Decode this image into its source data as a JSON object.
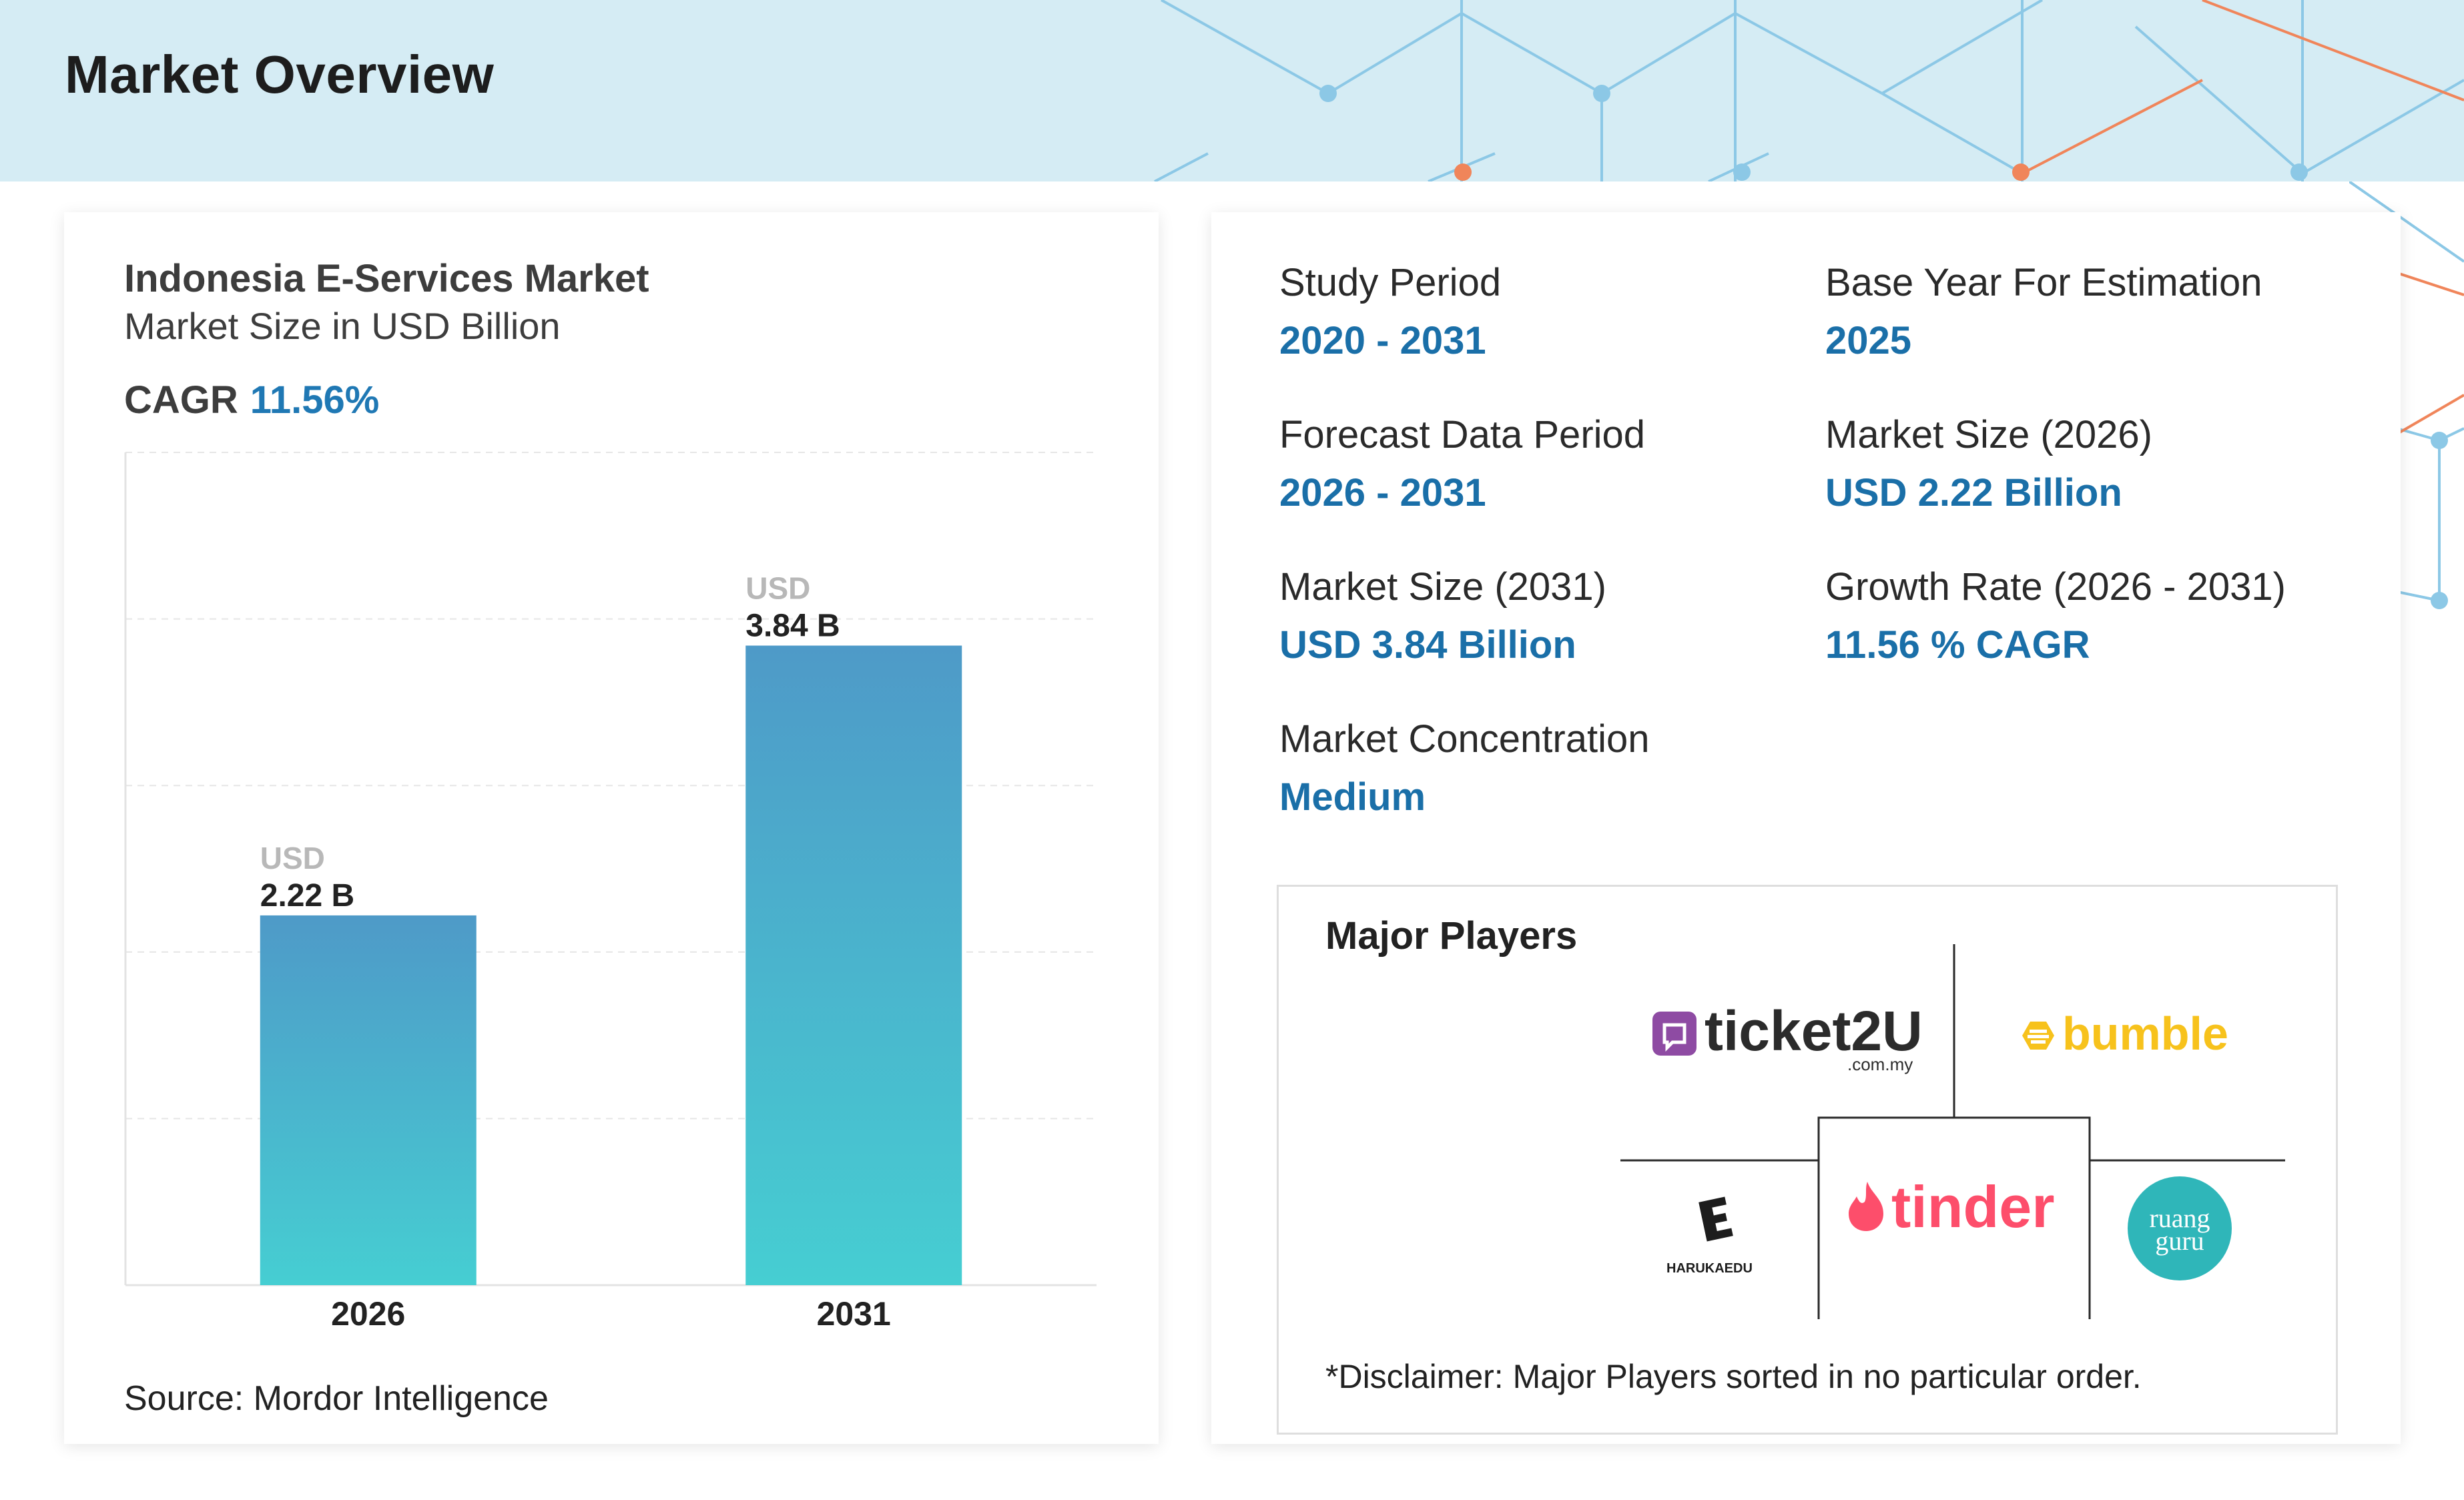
{
  "header": {
    "title": "Market Overview"
  },
  "chart_card": {
    "title": "Indonesia E-Services Market",
    "subtitle": "Market Size in USD Billion",
    "cagr_label": "CAGR",
    "cagr_value": "11.56%",
    "source": "Source: Mordor Intelligence"
  },
  "chart_data": {
    "type": "bar",
    "title": "Indonesia E-Services Market",
    "subtitle": "Market Size in USD Billion",
    "categories": [
      "2026",
      "2031"
    ],
    "values": [
      2.22,
      3.84
    ],
    "value_prefix": "USD",
    "value_labels": [
      "2.22 B",
      "3.84 B"
    ],
    "xlabel": "",
    "ylabel": "",
    "ylim": [
      0,
      5
    ],
    "grid": "horizontal-dashed",
    "bar_gradient": [
      "#4e9ac8",
      "#46ced2"
    ]
  },
  "stats": {
    "study_period": {
      "label": "Study Period",
      "value": "2020 - 2031"
    },
    "base_year": {
      "label": "Base Year For Estimation",
      "value": "2025"
    },
    "forecast_period": {
      "label": "Forecast Data Period",
      "value": "2026 - 2031"
    },
    "market_size_2026": {
      "label": "Market Size (2026)",
      "value": "USD 2.22 Billion"
    },
    "market_size_2031": {
      "label": "Market Size (2031)",
      "value": "USD 3.84 Billion"
    },
    "growth_rate": {
      "label": "Growth Rate (2026 - 2031)",
      "value": "11.56 % CAGR"
    },
    "concentration": {
      "label": "Market Concentration",
      "value": "Medium"
    }
  },
  "players": {
    "title": "Major Players",
    "logos": [
      {
        "name": "ticket2U",
        "text_main": "ticket2U",
        "text_sub": ".com.my",
        "color": "#2b2b2b",
        "accent": "#8e4ba3"
      },
      {
        "name": "bumble",
        "text_main": "bumble",
        "color": "#f7c21c"
      },
      {
        "name": "HarukaEDU",
        "text_main": "HARUKAEDU",
        "color": "#1d1d1d"
      },
      {
        "name": "tinder",
        "text_main": "tinder",
        "color": "#fd4e6b"
      },
      {
        "name": "ruangguru",
        "text_main": "ruang",
        "text_sub": "guru",
        "color": "#2fb6b9"
      }
    ],
    "disclaimer": "*Disclaimer: Major Players sorted in no particular order."
  },
  "colors": {
    "header_bg": "#d5ecf4",
    "accent_blue": "#1a6fa8",
    "network_blue": "#8cc8e6",
    "network_orange": "#f0855a"
  }
}
